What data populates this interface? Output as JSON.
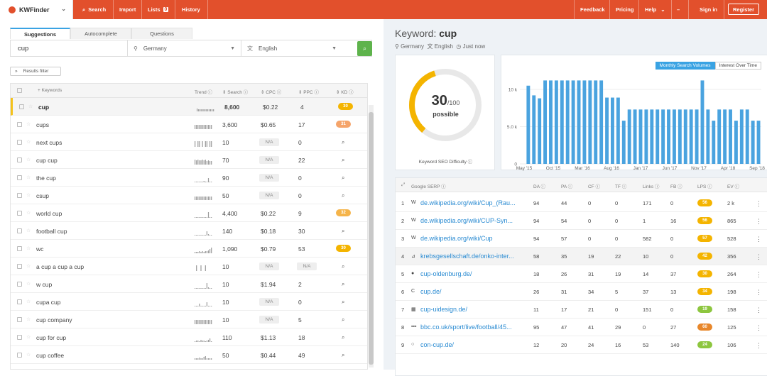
{
  "app": {
    "logo": "KWFinder",
    "nav_left": [
      "Search",
      "Import",
      "Lists",
      "History"
    ],
    "lists_count": "0",
    "nav_right": [
      "Feedback",
      "Pricing",
      "Help"
    ],
    "sign_in": "Sign in",
    "register": "Register"
  },
  "left": {
    "tabs": [
      "Suggestions",
      "Autocomplete",
      "Questions"
    ],
    "search_value": "cup",
    "location": "Germany",
    "language": "English",
    "filter_label": "Results filter",
    "headers": [
      "Keywords",
      "Trend",
      "Search",
      "CPC",
      "PPC",
      "KD"
    ],
    "rows": [
      {
        "kw": "cup",
        "search": "8,600",
        "cpc": "$0.22",
        "ppc": "4",
        "kd": "30",
        "kd_color": "#f4b400",
        "selected": true
      },
      {
        "kw": "cups",
        "search": "3,600",
        "cpc": "$0.65",
        "ppc": "17",
        "kd": "31",
        "kd_color": "#f5a46a",
        "selected": false
      },
      {
        "kw": "next cups",
        "search": "10",
        "cpc": "N/A",
        "ppc": "0",
        "kd": "",
        "kd_color": "",
        "selected": false
      },
      {
        "kw": "cup cup",
        "search": "70",
        "cpc": "N/A",
        "ppc": "22",
        "kd": "",
        "kd_color": "",
        "selected": false
      },
      {
        "kw": "the cup",
        "search": "90",
        "cpc": "N/A",
        "ppc": "0",
        "kd": "",
        "kd_color": "",
        "selected": false
      },
      {
        "kw": "csup",
        "search": "50",
        "cpc": "N/A",
        "ppc": "0",
        "kd": "",
        "kd_color": "",
        "selected": false
      },
      {
        "kw": "world cup",
        "search": "4,400",
        "cpc": "$0.22",
        "ppc": "9",
        "kd": "32",
        "kd_color": "#f5b44a",
        "selected": false
      },
      {
        "kw": "football cup",
        "search": "140",
        "cpc": "$0.18",
        "ppc": "30",
        "kd": "",
        "kd_color": "",
        "selected": false
      },
      {
        "kw": "wc",
        "search": "1,090",
        "cpc": "$0.79",
        "ppc": "53",
        "kd": "30",
        "kd_color": "#f4b400",
        "selected": false
      },
      {
        "kw": "a cup a cup a cup",
        "search": "10",
        "cpc": "N/A",
        "ppc": "N/A",
        "kd": "",
        "kd_color": "",
        "selected": false
      },
      {
        "kw": "w cup",
        "search": "10",
        "cpc": "$1.94",
        "ppc": "2",
        "kd": "",
        "kd_color": "",
        "selected": false
      },
      {
        "kw": "cupa cup",
        "search": "10",
        "cpc": "N/A",
        "ppc": "0",
        "kd": "",
        "kd_color": "",
        "selected": false
      },
      {
        "kw": "cup company",
        "search": "10",
        "cpc": "N/A",
        "ppc": "5",
        "kd": "",
        "kd_color": "",
        "selected": false
      },
      {
        "kw": "cup for cup",
        "search": "110",
        "cpc": "$1.13",
        "ppc": "18",
        "kd": "",
        "kd_color": "",
        "selected": false
      },
      {
        "kw": "cup coffee",
        "search": "50",
        "cpc": "$0.44",
        "ppc": "49",
        "kd": "",
        "kd_color": "",
        "selected": false
      }
    ]
  },
  "right": {
    "title_prefix": "Keyword:",
    "keyword": "cup",
    "location": "Germany",
    "language": "English",
    "time": "Just now",
    "kd_value": "30",
    "kd_max": "/100",
    "kd_word": "possible",
    "kd_caption": "Keyword SEO Difficulty",
    "chart_tabs": [
      "Monthly Search Volumes",
      "Interest Over Time"
    ],
    "serp_headers": [
      "Google SERP",
      "DA",
      "PA",
      "CF",
      "TF",
      "Links",
      "FB",
      "LPS",
      "EV"
    ],
    "serp": [
      {
        "n": "1",
        "fav": "W",
        "url": "de.wikipedia.org/wiki/Cup_(Rau...",
        "da": "94",
        "pa": "44",
        "cf": "0",
        "tf": "0",
        "links": "171",
        "fb": "0",
        "lps": "56",
        "lps_color": "#f4b400",
        "ev": "2 k",
        "hl": false
      },
      {
        "n": "2",
        "fav": "W",
        "url": "de.wikipedia.org/wiki/CUP-Syn...",
        "da": "94",
        "pa": "54",
        "cf": "0",
        "tf": "0",
        "links": "1",
        "fb": "16",
        "lps": "56",
        "lps_color": "#f4b400",
        "ev": "865",
        "hl": false
      },
      {
        "n": "3",
        "fav": "W",
        "url": "de.wikipedia.org/wiki/Cup",
        "da": "94",
        "pa": "57",
        "cf": "0",
        "tf": "0",
        "links": "582",
        "fb": "0",
        "lps": "57",
        "lps_color": "#f4b400",
        "ev": "528",
        "hl": false
      },
      {
        "n": "4",
        "fav": "⊿",
        "url": "krebsgesellschaft.de/onko-inter...",
        "da": "58",
        "pa": "35",
        "cf": "19",
        "tf": "22",
        "links": "10",
        "fb": "0",
        "lps": "42",
        "lps_color": "#f4b400",
        "ev": "356",
        "hl": true
      },
      {
        "n": "5",
        "fav": "●",
        "url": "cup-oldenburg.de/",
        "da": "18",
        "pa": "26",
        "cf": "31",
        "tf": "19",
        "links": "14",
        "fb": "37",
        "lps": "30",
        "lps_color": "#f4b400",
        "ev": "264",
        "hl": false
      },
      {
        "n": "6",
        "fav": "C",
        "url": "cup.de/",
        "da": "26",
        "pa": "31",
        "cf": "34",
        "tf": "5",
        "links": "37",
        "fb": "13",
        "lps": "34",
        "lps_color": "#f4b400",
        "ev": "198",
        "hl": false
      },
      {
        "n": "7",
        "fav": "▦",
        "url": "cup-uidesign.de/",
        "da": "11",
        "pa": "17",
        "cf": "21",
        "tf": "0",
        "links": "151",
        "fb": "0",
        "lps": "19",
        "lps_color": "#8dc63f",
        "ev": "158",
        "hl": false
      },
      {
        "n": "8",
        "fav": "▪▪▪",
        "url": "bbc.co.uk/sport/live/football/45...",
        "da": "95",
        "pa": "47",
        "cf": "41",
        "tf": "29",
        "links": "0",
        "fb": "27",
        "lps": "60",
        "lps_color": "#e8872b",
        "ev": "125",
        "hl": false
      },
      {
        "n": "9",
        "fav": "○",
        "url": "con-cup.de/",
        "da": "12",
        "pa": "20",
        "cf": "24",
        "tf": "16",
        "links": "53",
        "fb": "140",
        "lps": "24",
        "lps_color": "#8dc63f",
        "ev": "106",
        "hl": false
      }
    ]
  },
  "chart_data": {
    "type": "bar",
    "title": "",
    "y_ticks": [
      "10 k",
      "5.0 k",
      "0"
    ],
    "x_ticks": [
      "May '15",
      "Oct '15",
      "Mar '16",
      "Aug '16",
      "Jan '17",
      "Jun '17",
      "Nov '17",
      "Apr '18",
      "Sep '18"
    ],
    "ylim": [
      0,
      12000
    ],
    "values": [
      0,
      10500,
      9200,
      8800,
      11200,
      11200,
      11200,
      11200,
      11200,
      11200,
      11200,
      11200,
      11200,
      11200,
      11200,
      8900,
      8900,
      8900,
      5800,
      7300,
      7300,
      7300,
      7300,
      7300,
      7300,
      7300,
      7300,
      7300,
      7300,
      7300,
      7300,
      7300,
      11200,
      7300,
      5800,
      7300,
      7300,
      7300,
      5800,
      7300,
      7300,
      5800,
      5800
    ],
    "color": "#4aa3df"
  }
}
